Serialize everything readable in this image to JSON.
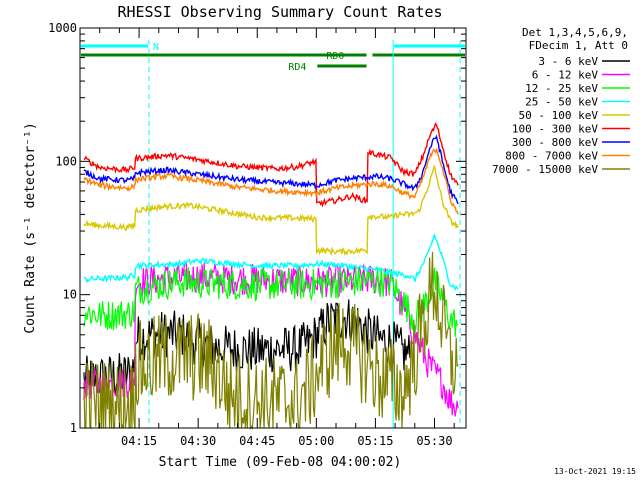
{
  "chart_data": {
    "type": "line",
    "title": "RHESSI Observing Summary Count Rates",
    "xlabel": "Start Time (09-Feb-08 04:00:02)",
    "ylabel": "Count Rate (s⁻¹ detector⁻¹)",
    "yscale": "log",
    "ylim": [
      1,
      1000
    ],
    "y_ticks": [
      {
        "v": 1,
        "label": "1"
      },
      {
        "v": 10,
        "label": "10"
      },
      {
        "v": 100,
        "label": "100"
      },
      {
        "v": 1000,
        "label": "1000"
      }
    ],
    "xlim": [
      0,
      98
    ],
    "x_ticks": [
      {
        "v": 15,
        "label": "04:15"
      },
      {
        "v": 30,
        "label": "04:30"
      },
      {
        "v": 45,
        "label": "04:45"
      },
      {
        "v": 60,
        "label": "05:00"
      },
      {
        "v": 75,
        "label": "05:15"
      },
      {
        "v": 90,
        "label": "05:30"
      }
    ],
    "legend": {
      "placement": "top-right",
      "header": [
        "Det 1,3,4,5,6,9,",
        "FDecim 1, Att 0"
      ]
    },
    "series": [
      {
        "name": "3 - 6 keV",
        "color": "#000000",
        "x": [
          1,
          12,
          13.9,
          14.1,
          20,
          26,
          29,
          35,
          45,
          50,
          55,
          58,
          61,
          63,
          67,
          70,
          73,
          76,
          79,
          82,
          84
        ],
        "y": [
          2.3,
          2.5,
          2.9,
          4.7,
          5.1,
          5.0,
          4.5,
          4.0,
          3.8,
          3.9,
          3.9,
          4.3,
          5.3,
          6.3,
          6.8,
          6.3,
          5.3,
          4.6,
          4.4,
          3.7,
          3.5
        ]
      },
      {
        "name": "6 - 12 keV",
        "color": "#ff00ff",
        "x": [
          1,
          12,
          13.9,
          14.1,
          22,
          30,
          45,
          60,
          70,
          75,
          79,
          85,
          88,
          90,
          92,
          94,
          96
        ],
        "y": [
          2.1,
          2.2,
          2.4,
          12.5,
          13.2,
          13.5,
          13.0,
          12.5,
          12.8,
          13.0,
          12.2,
          5.0,
          3.2,
          2.6,
          2.2,
          1.6,
          1.4
        ]
      },
      {
        "name": "12 - 25 keV",
        "color": "#00ff00",
        "x": [
          1,
          5,
          12,
          13.9,
          14.1,
          25,
          30,
          45,
          60,
          70,
          75,
          79,
          85,
          88,
          90,
          92,
          94,
          96
        ],
        "y": [
          7.5,
          7.0,
          7.2,
          7.5,
          11.0,
          12.5,
          12.2,
          11.8,
          12.0,
          12.5,
          12.8,
          12.3,
          6.5,
          9.0,
          12.5,
          9.5,
          6.5,
          6.0
        ]
      },
      {
        "name": "25 - 50 keV",
        "color": "#00ffff",
        "x": [
          1,
          12,
          13.9,
          14.1,
          25,
          30,
          45,
          55,
          60,
          65,
          70,
          75,
          79,
          83,
          85,
          88,
          90,
          92,
          94,
          96
        ],
        "y": [
          13.0,
          13.5,
          14.0,
          16.5,
          17.0,
          18.0,
          16.5,
          16.5,
          17.0,
          16.8,
          16.0,
          15.5,
          14.5,
          14.0,
          13.0,
          19.0,
          28.0,
          19.0,
          12.0,
          11.0
        ]
      },
      {
        "name": "50 - 100 keV",
        "color": "#d7c800",
        "x": [
          1,
          5,
          12,
          13.9,
          14.1,
          22,
          28,
          35,
          45,
          55,
          59.9,
          60.1,
          66,
          72,
          72.9,
          73.1,
          79,
          81,
          84,
          86,
          88,
          90,
          92,
          94,
          96
        ],
        "y": [
          34.0,
          33.0,
          32.0,
          33.0,
          43.0,
          46.0,
          46.5,
          43.0,
          38.0,
          37.5,
          37.0,
          21.5,
          21.0,
          21.5,
          21.5,
          39.0,
          38.0,
          40.0,
          40.0,
          42.0,
          60.0,
          90.0,
          50.0,
          36.0,
          32.0
        ]
      },
      {
        "name": "100 - 300 keV",
        "color": "#ff0000",
        "x": [
          1,
          5,
          12,
          13.9,
          14.1,
          22,
          30,
          40,
          50,
          55,
          59.9,
          60.1,
          65,
          69,
          72.9,
          73.1,
          79,
          82,
          85,
          87,
          89,
          90.5,
          92,
          94,
          96
        ],
        "y": [
          105.0,
          90.0,
          86.0,
          90.0,
          105.0,
          111.0,
          103.0,
          92.0,
          88.0,
          91.0,
          100.0,
          48.0,
          51.0,
          55.0,
          50.0,
          117.0,
          106.0,
          84.0,
          80.0,
          108.0,
          160.0,
          190.0,
          130.0,
          80.0,
          66.0
        ]
      },
      {
        "name": "300 - 800 keV",
        "color": "#0000ff",
        "x": [
          1,
          5,
          12,
          13.9,
          14.1,
          22,
          30,
          40,
          50,
          55,
          60,
          65,
          70,
          75,
          79,
          82,
          85,
          87,
          89,
          90.5,
          92,
          94,
          96
        ],
        "y": [
          84.0,
          74.0,
          72.0,
          74.0,
          82.0,
          86.0,
          80.0,
          73.0,
          69.0,
          68.0,
          66.0,
          72.0,
          75.0,
          77.0,
          74.0,
          68.0,
          62.0,
          82.0,
          130.0,
          155.0,
          100.0,
          60.0,
          48.0
        ]
      },
      {
        "name": "800 - 7000 keV",
        "color": "#ff8000",
        "x": [
          1,
          5,
          12,
          13.9,
          14.1,
          22,
          30,
          40,
          50,
          55,
          60,
          65,
          70,
          75,
          79,
          82,
          85,
          87,
          89,
          90.5,
          92,
          94,
          96
        ],
        "y": [
          74.0,
          66.0,
          63.0,
          65.0,
          73.0,
          78.0,
          72.0,
          64.0,
          60.0,
          59.0,
          58.0,
          63.0,
          66.0,
          68.0,
          65.0,
          58.0,
          54.0,
          74.0,
          110.0,
          125.0,
          90.0,
          52.0,
          40.0
        ]
      },
      {
        "name": "7000 - 15000 keV",
        "color": "#808000",
        "x": [
          1,
          5,
          12,
          13.9,
          14.1,
          22,
          30,
          34,
          38,
          45,
          55,
          58,
          62,
          67,
          72,
          76,
          79,
          82,
          85,
          88,
          90,
          92,
          94,
          96
        ],
        "y": [
          1.6,
          1.5,
          1.5,
          1.6,
          2.8,
          3.4,
          3.4,
          3.0,
          1.8,
          1.6,
          1.6,
          2.0,
          3.3,
          4.6,
          3.3,
          2.4,
          2.2,
          1.8,
          3.5,
          7.5,
          12.5,
          6.0,
          3.2,
          3.0
        ]
      }
    ],
    "flag_bars": [
      {
        "label": "N",
        "color": "#00ffff",
        "segments": [
          [
            0,
            17.5
          ],
          [
            79.5,
            98
          ]
        ],
        "y": 0.94
      },
      {
        "label": "RD0",
        "color": "#008000",
        "segments": [
          [
            0,
            73
          ],
          [
            74,
            98
          ]
        ],
        "y": 0.925
      },
      {
        "label": "RD4",
        "color": "#008000",
        "segments": [
          [
            60,
            73
          ]
        ],
        "y": 0.905
      }
    ],
    "vlines": [
      {
        "x": 0,
        "color": "#00ffff",
        "style": "solid"
      },
      {
        "x": 17.5,
        "color": "#00ffff",
        "style": "dashed"
      },
      {
        "x": 79.5,
        "color": "#00ffff",
        "style": "solid"
      },
      {
        "x": 96.5,
        "color": "#00ffff",
        "style": "dashed"
      }
    ]
  },
  "footer": {
    "timestamp": "13-Oct-2021 19:15"
  }
}
